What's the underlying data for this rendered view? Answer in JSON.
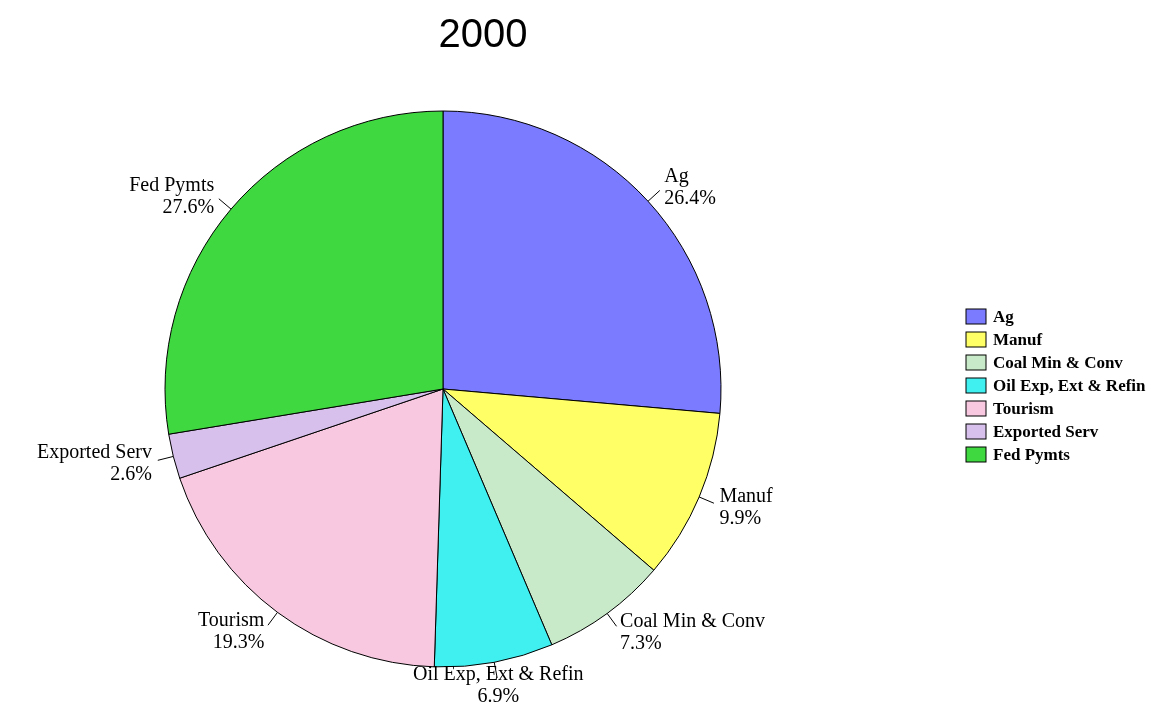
{
  "chart_data": {
    "type": "pie",
    "title": "2000",
    "categories": [
      "Ag",
      "Manuf",
      "Coal Min & Conv",
      "Oil Exp, Ext & Refin",
      "Tourism",
      "Exported Serv",
      "Fed Pymts"
    ],
    "values": [
      26.4,
      9.9,
      7.3,
      6.9,
      19.3,
      2.6,
      27.6
    ],
    "colors": [
      "#7b7bff",
      "#ffff66",
      "#c8eac8",
      "#40f0f0",
      "#f8c8e0",
      "#d8c0ec",
      "#40d840"
    ],
    "value_labels": [
      "26.4%",
      "9.9%",
      "7.3%",
      "6.9%",
      "19.3%",
      "2.6%",
      "27.6%"
    ],
    "legend": "right"
  }
}
